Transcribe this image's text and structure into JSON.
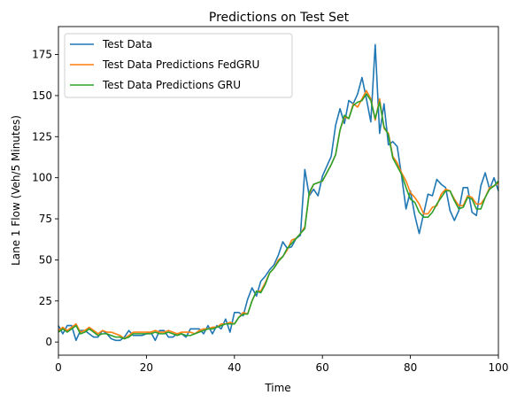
{
  "chart_data": {
    "type": "line",
    "title": "Predictions on Test Set",
    "xlabel": "Time",
    "ylabel": "Lane 1 Flow (Veh/5 Minutes)",
    "xlim": [
      0,
      100
    ],
    "ylim": [
      -8,
      192
    ],
    "xticks": [
      0,
      20,
      40,
      60,
      80,
      100
    ],
    "yticks": [
      0,
      25,
      50,
      75,
      100,
      125,
      150,
      175
    ],
    "grid": false,
    "legend_position": "upper-left",
    "x": [
      0,
      1,
      2,
      3,
      4,
      5,
      6,
      7,
      8,
      9,
      10,
      11,
      12,
      13,
      14,
      15,
      16,
      17,
      18,
      19,
      20,
      21,
      22,
      23,
      24,
      25,
      26,
      27,
      28,
      29,
      30,
      31,
      32,
      33,
      34,
      35,
      36,
      37,
      38,
      39,
      40,
      41,
      42,
      43,
      44,
      45,
      46,
      47,
      48,
      49,
      50,
      51,
      52,
      53,
      54,
      55,
      56,
      57,
      58,
      59,
      60,
      61,
      62,
      63,
      64,
      65,
      66,
      67,
      68,
      69,
      70,
      71,
      72,
      73,
      74,
      75,
      76,
      77,
      78,
      79,
      80,
      81,
      82,
      83,
      84,
      85,
      86,
      87,
      88,
      89,
      90,
      91,
      92,
      93,
      94,
      95,
      96,
      97,
      98,
      99,
      100
    ],
    "series": [
      {
        "name": "Test Data",
        "color": "#1f77b4",
        "values": [
          10,
          5,
          10,
          10,
          1,
          7,
          7,
          5,
          3,
          3,
          7,
          5,
          2,
          1,
          1,
          3,
          7,
          4,
          4,
          4,
          5,
          6,
          1,
          7,
          7,
          3,
          3,
          5,
          5,
          3,
          8,
          8,
          8,
          5,
          10,
          5,
          10,
          8,
          14,
          6,
          18,
          18,
          16,
          26,
          33,
          28,
          37,
          40,
          44,
          47,
          53,
          61,
          57,
          58,
          63,
          65,
          105,
          89,
          93,
          89,
          101,
          107,
          113,
          132,
          142,
          133,
          147,
          145,
          151,
          161,
          148,
          134,
          181,
          127,
          145,
          120,
          122,
          119,
          101,
          81,
          92,
          77,
          66,
          78,
          90,
          89,
          99,
          96,
          94,
          80,
          74,
          80,
          94,
          94,
          79,
          77,
          95,
          103,
          93,
          100,
          92
        ]
      },
      {
        "name": "Test Data Predictions FedGRU",
        "color": "#ff7f0e",
        "values": [
          7,
          9,
          7,
          9,
          11,
          6,
          7,
          9,
          7,
          5,
          7,
          6,
          6,
          5,
          4,
          2,
          4,
          6,
          6,
          6,
          6,
          6,
          7,
          6,
          6,
          7,
          6,
          5,
          6,
          6,
          6,
          5,
          7,
          8,
          8,
          9,
          9,
          11,
          11,
          12,
          11,
          15,
          18,
          17,
          25,
          31,
          31,
          36,
          42,
          45,
          50,
          52,
          56,
          62,
          63,
          66,
          70,
          90,
          96,
          97,
          98,
          103,
          108,
          114,
          129,
          137,
          136,
          145,
          143,
          148,
          153,
          148,
          135,
          148,
          130,
          127,
          113,
          109,
          103,
          98,
          91,
          88,
          84,
          78,
          78,
          82,
          83,
          90,
          93,
          92,
          87,
          83,
          83,
          89,
          88,
          84,
          84,
          88,
          94,
          95,
          97
        ]
      },
      {
        "name": "Test Data Predictions GRU",
        "color": "#2ca02c",
        "values": [
          6,
          8,
          6,
          8,
          10,
          5,
          6,
          8,
          6,
          4,
          5,
          5,
          4,
          3,
          3,
          2,
          3,
          5,
          5,
          5,
          5,
          5,
          6,
          5,
          5,
          6,
          5,
          4,
          5,
          4,
          4,
          5,
          6,
          7,
          8,
          8,
          9,
          10,
          11,
          11,
          11,
          15,
          17,
          17,
          25,
          31,
          30,
          35,
          42,
          45,
          49,
          52,
          57,
          60,
          63,
          66,
          69,
          91,
          96,
          97,
          98,
          103,
          108,
          114,
          129,
          138,
          136,
          144,
          146,
          147,
          151,
          147,
          136,
          146,
          131,
          126,
          112,
          107,
          102,
          94,
          87,
          85,
          79,
          76,
          76,
          79,
          84,
          88,
          92,
          92,
          86,
          81,
          82,
          88,
          87,
          81,
          81,
          88,
          93,
          95,
          98
        ]
      }
    ]
  }
}
